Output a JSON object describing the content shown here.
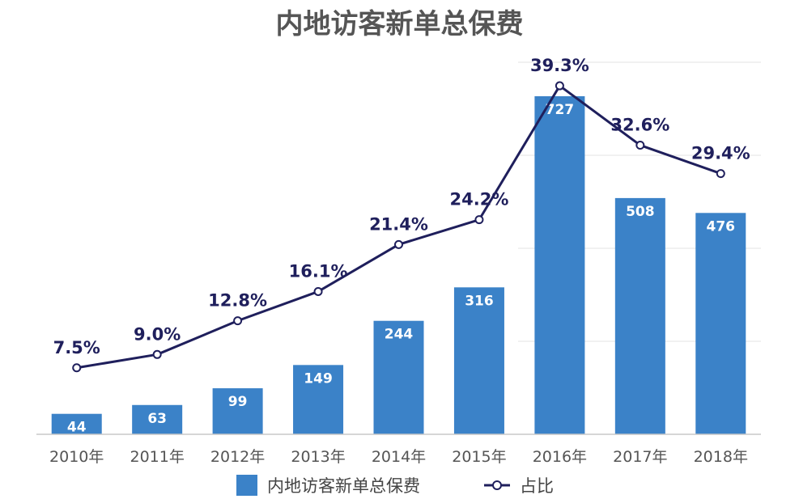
{
  "chart_data": {
    "type": "bar",
    "title": "内地访客新单总保费",
    "categories": [
      "2010年",
      "2011年",
      "2012年",
      "2013年",
      "2014年",
      "2015年",
      "2016年",
      "2017年",
      "2018年"
    ],
    "series": [
      {
        "name": "内地访客新单总保费",
        "type": "bar",
        "values": [
          44,
          63,
          99,
          149,
          244,
          316,
          727,
          508,
          476
        ],
        "labels": [
          "44",
          "63",
          "99",
          "149",
          "244",
          "316",
          "727",
          "508",
          "476"
        ],
        "color": "#3b82c8"
      },
      {
        "name": "占比",
        "type": "line",
        "values": [
          7.5,
          9.0,
          12.8,
          16.1,
          21.4,
          24.2,
          39.3,
          32.6,
          29.4
        ],
        "labels": [
          "7.5%",
          "9.0%",
          "12.8%",
          "16.1%",
          "21.4%",
          "24.2%",
          "39.3%",
          "32.6%",
          "29.4%"
        ],
        "color": "#1f1f5c"
      }
    ],
    "ylim_bars": [
      0,
      800
    ],
    "ylim_line": [
      0,
      41.95
    ],
    "grid": true,
    "legend_position": "bottom"
  }
}
